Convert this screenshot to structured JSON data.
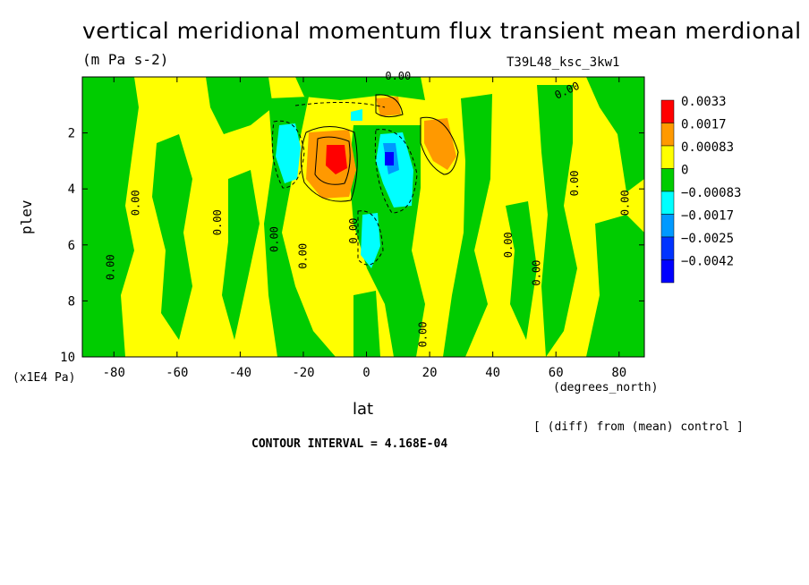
{
  "title": "vertical meridional momentum flux transient mean merdional",
  "subtitle": "(m Pa s-2)",
  "run_label": "T39L48_ksc_3kw1",
  "xlabel": "lat",
  "ylabel": "plev",
  "xunit": "(degrees_north)",
  "yunit": "(x1E4 Pa)",
  "diff_note": "[ (diff) from (mean) control ]",
  "contour_interval": "CONTOUR INTERVAL = 4.168E-04",
  "chart_data": {
    "type": "heatmap",
    "title": "vertical meridional momentum flux transient mean merdional",
    "units": "m Pa s-2",
    "xlabel": "lat",
    "ylabel": "plev",
    "xlim": [
      -90,
      88
    ],
    "ylim": [
      10,
      0
    ],
    "x_ticks": [
      -80,
      -60,
      -40,
      -20,
      0,
      20,
      40,
      60,
      80
    ],
    "y_ticks": [
      2,
      4,
      6,
      8,
      10
    ],
    "legend": [
      {
        "label": "0.0033",
        "color": "#ff0000"
      },
      {
        "label": "0.0017",
        "color": "#ff9900"
      },
      {
        "label": "0.00083",
        "color": "#ffff00"
      },
      {
        "label": "0",
        "color": "#00cc00"
      },
      {
        "label": "−0.00083",
        "color": "#00ffff"
      },
      {
        "label": "−0.0017",
        "color": "#0099ff"
      },
      {
        "label": "−0.0025",
        "color": "#0033ff"
      },
      {
        "label": "−0.0042",
        "color": "#0000ff"
      }
    ],
    "contour_labels": [
      {
        "text": "0.00",
        "lat": 10,
        "plev": 0.1,
        "rotate": 0
      },
      {
        "text": "0.00",
        "lat": 64,
        "plev": 0.6,
        "rotate": -25
      },
      {
        "text": "0.00",
        "lat": -72,
        "plev": 4.5,
        "rotate": -90
      },
      {
        "text": "0.00",
        "lat": -46,
        "plev": 5.2,
        "rotate": -90
      },
      {
        "text": "0.00",
        "lat": -28,
        "plev": 5.8,
        "rotate": -90
      },
      {
        "text": "0.00",
        "lat": -19,
        "plev": 6.4,
        "rotate": -90
      },
      {
        "text": "0.00",
        "lat": -80,
        "plev": 6.8,
        "rotate": -90
      },
      {
        "text": "0.00",
        "lat": -3,
        "plev": 5.5,
        "rotate": -90
      },
      {
        "text": "0.00",
        "lat": 19,
        "plev": 9.2,
        "rotate": -90
      },
      {
        "text": "0.00",
        "lat": 46,
        "plev": 6.0,
        "rotate": -90
      },
      {
        "text": "0.00",
        "lat": 55,
        "plev": 7.0,
        "rotate": -90
      },
      {
        "text": "0.00",
        "lat": 67,
        "plev": 3.8,
        "rotate": -90
      },
      {
        "text": "0.00",
        "lat": 83,
        "plev": 4.5,
        "rotate": -90
      }
    ],
    "features": [
      {
        "kind": "max",
        "lat": -11,
        "plev": 3.0,
        "value": 0.0033
      },
      {
        "kind": "max",
        "lat": 24,
        "plev": 2.6,
        "value": 0.0017
      },
      {
        "kind": "min",
        "lat": 8,
        "plev": 3.0,
        "value": -0.0042
      },
      {
        "kind": "min",
        "lat": -23,
        "plev": 2.6,
        "value": -0.0017
      },
      {
        "kind": "min",
        "lat": 2,
        "plev": 6.0,
        "value": -0.0017
      }
    ]
  }
}
